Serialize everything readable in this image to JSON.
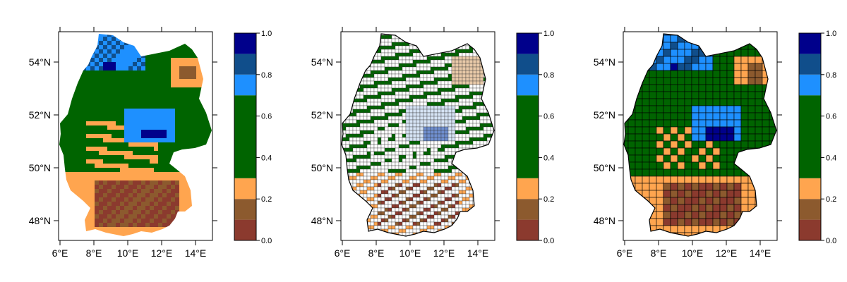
{
  "colors": {
    "c0": "#8b3a2e",
    "c1": "#8c5a2e",
    "c2": "#ffa54f",
    "c3": "#006400",
    "c4": "#1e90ff",
    "c5": "#104e8b",
    "c6": "#00008b",
    "border": "#000000"
  },
  "colorbar": {
    "breaks": [
      0.0,
      0.1,
      0.2,
      0.3,
      0.7,
      0.8,
      0.9,
      1.0
    ],
    "labels": [
      "0.0",
      "0.2",
      "0.4",
      "0.6",
      "0.8",
      "1.0"
    ],
    "colors": [
      "#8b3a2e",
      "#8c5a2e",
      "#ffa54f",
      "#006400",
      "#1e90ff",
      "#104e8b",
      "#00008b"
    ]
  },
  "axes": {
    "x_ticks": [
      "6°E",
      "8°E",
      "10°E",
      "12°E",
      "14°E"
    ],
    "y_ticks": [
      "48°N",
      "50°N",
      "52°N",
      "54°N"
    ]
  },
  "panels": [
    {
      "kind": "gridded raster",
      "dominant_color": "#006400"
    },
    {
      "kind": "municipality polygons",
      "dominant_color": "#ffffff"
    },
    {
      "kind": "district polygons",
      "dominant_color": "#006400"
    }
  ]
}
